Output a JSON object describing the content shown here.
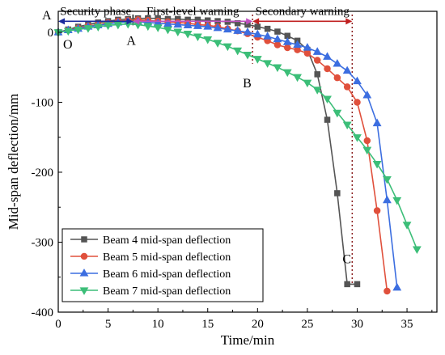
{
  "chart_data": {
    "type": "line",
    "xlabel": "Time/min",
    "ylabel": "Mid-span deflection/mm",
    "xlim": [
      0,
      38
    ],
    "ylim": [
      -400,
      30
    ],
    "x_ticks": [
      0,
      5,
      10,
      15,
      20,
      25,
      30,
      35
    ],
    "y_ticks": [
      0,
      -100,
      -200,
      -300,
      -400
    ],
    "legend_position": "bottom-left",
    "series": [
      {
        "name": "Beam 4 mid-span deflection",
        "color": "#555555",
        "marker": "square",
        "x": [
          0,
          1,
          2,
          3,
          4,
          5,
          6,
          7,
          8,
          9,
          10,
          11,
          12,
          13,
          14,
          15,
          16,
          17,
          18,
          19,
          20,
          21,
          22,
          23,
          24,
          25,
          26,
          27,
          28,
          29,
          30
        ],
        "y": [
          0,
          4,
          8,
          11,
          14,
          16,
          18,
          19,
          20,
          20,
          20,
          19,
          19,
          18,
          18,
          17,
          16,
          15,
          13,
          11,
          8,
          5,
          1,
          -5,
          -12,
          -25,
          -60,
          -125,
          -230,
          -360,
          -360
        ]
      },
      {
        "name": "Beam 5 mid-span deflection",
        "color": "#e0503c",
        "marker": "circle",
        "x": [
          0,
          1,
          2,
          3,
          4,
          5,
          6,
          7,
          8,
          9,
          10,
          11,
          12,
          13,
          14,
          15,
          16,
          17,
          18,
          19,
          20,
          21,
          22,
          23,
          24,
          25,
          26,
          27,
          28,
          29,
          30,
          31,
          32,
          33
        ],
        "y": [
          0,
          3,
          6,
          9,
          11,
          14,
          16,
          17,
          18,
          17,
          16,
          15,
          14,
          13,
          11,
          10,
          8,
          5,
          2,
          -2,
          -7,
          -12,
          -18,
          -22,
          -25,
          -30,
          -40,
          -52,
          -65,
          -78,
          -100,
          -155,
          -255,
          -370
        ]
      },
      {
        "name": "Beam 6 mid-span deflection",
        "color": "#3c6ee0",
        "marker": "triangle-up",
        "x": [
          0,
          1,
          2,
          3,
          4,
          5,
          6,
          7,
          8,
          9,
          10,
          11,
          12,
          13,
          14,
          15,
          16,
          17,
          18,
          19,
          20,
          21,
          22,
          23,
          24,
          25,
          26,
          27,
          28,
          29,
          30,
          31,
          32,
          33,
          34
        ],
        "y": [
          0,
          3,
          5,
          8,
          10,
          12,
          14,
          15,
          15,
          14,
          13,
          12,
          11,
          10,
          9,
          8,
          6,
          4,
          2,
          0,
          -3,
          -6,
          -10,
          -14,
          -18,
          -22,
          -28,
          -35,
          -45,
          -55,
          -70,
          -90,
          -130,
          -240,
          -365
        ]
      },
      {
        "name": "Beam 7 mid-span deflection",
        "color": "#3cbe78",
        "marker": "triangle-down",
        "x": [
          0,
          1,
          2,
          3,
          4,
          5,
          6,
          7,
          8,
          9,
          10,
          11,
          12,
          13,
          14,
          15,
          16,
          17,
          18,
          19,
          20,
          21,
          22,
          23,
          24,
          25,
          26,
          27,
          28,
          29,
          30,
          31,
          32,
          33,
          34,
          35,
          36
        ],
        "y": [
          0,
          2,
          4,
          6,
          8,
          10,
          11,
          12,
          11,
          9,
          7,
          4,
          1,
          -2,
          -6,
          -10,
          -15,
          -20,
          -26,
          -32,
          -38,
          -44,
          -50,
          -57,
          -64,
          -72,
          -82,
          -95,
          -115,
          -132,
          -150,
          -168,
          -188,
          -210,
          -240,
          -275,
          -310
        ]
      }
    ]
  },
  "annotations": {
    "phases": [
      {
        "label": "Security phase",
        "color": "#1a2a9c",
        "x_start": 0,
        "x_end": 7.5
      },
      {
        "label": "First-level warning",
        "color": "#c050c0",
        "x_start": 7.5,
        "x_end": 19.5
      },
      {
        "label": "Secondary warning",
        "color": "#c02020",
        "x_start": 19.5,
        "x_end": 29.5
      }
    ],
    "points": [
      {
        "label": "A",
        "x": 7.5,
        "y": 30
      },
      {
        "label": "O",
        "x": 0,
        "y": 0
      },
      {
        "label": "A",
        "x": 7.5,
        "y": 10
      },
      {
        "label": "B",
        "x": 19.5,
        "y": -50
      },
      {
        "label": "C",
        "x": 29.5,
        "y": -300
      }
    ],
    "boundary_lines": [
      {
        "x": 7.5,
        "color": "#111111"
      },
      {
        "x": 19.5,
        "color": "#8b2020"
      },
      {
        "x": 29.5,
        "color": "#8b2020"
      }
    ]
  }
}
